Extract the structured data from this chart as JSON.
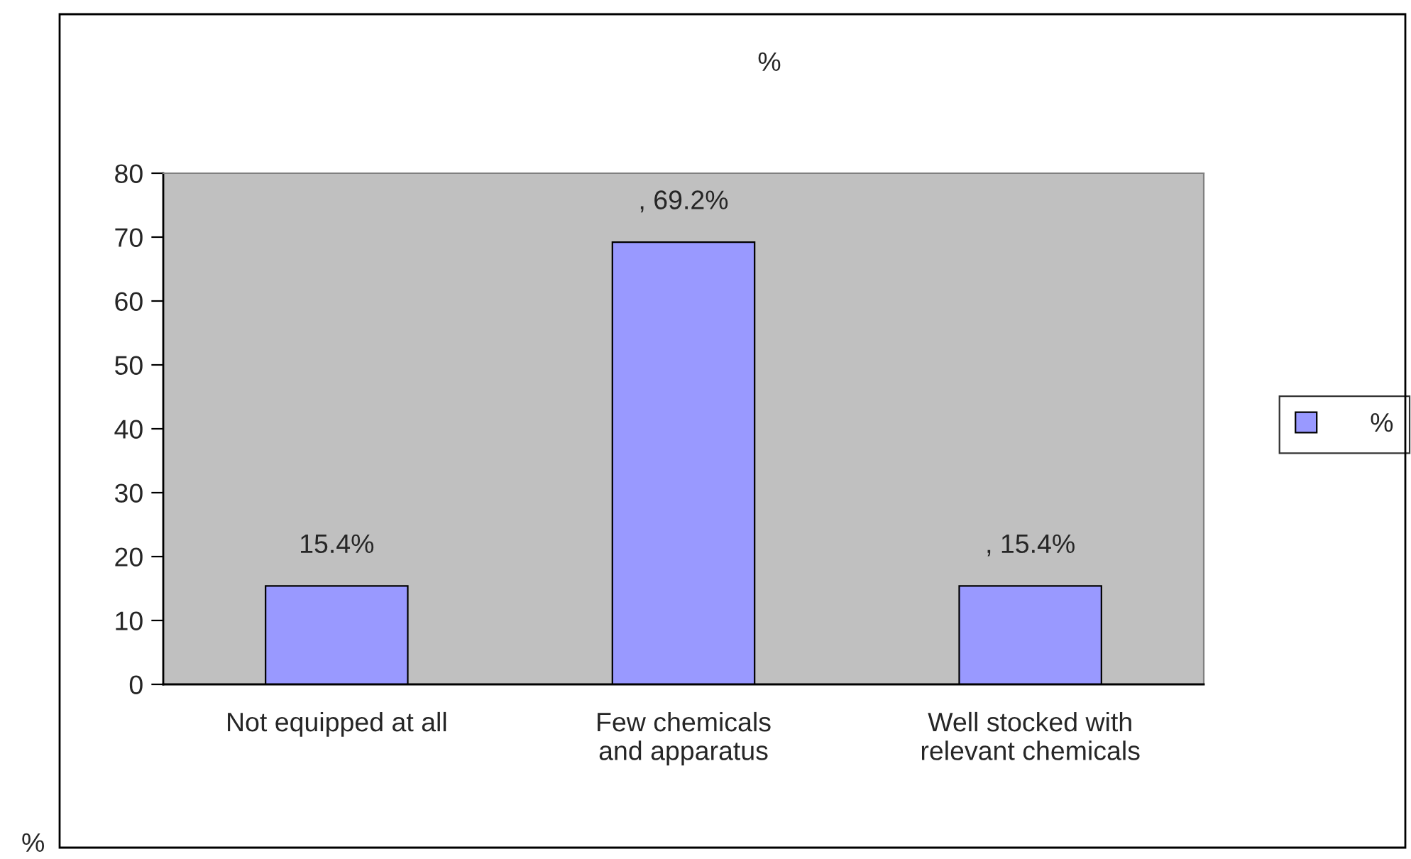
{
  "chart_data": {
    "type": "bar",
    "title": "%",
    "categories": [
      "Not equipped at all",
      "Few chemicals\nand apparatus",
      "Well stocked with\nrelevant chemicals"
    ],
    "series": [
      {
        "name": "%",
        "color": "#9999ff",
        "values": [
          15.4,
          69.2,
          15.4
        ],
        "value_labels": [
          "15.4%",
          ", 69.2%",
          ", 15.4%"
        ]
      }
    ],
    "ylim": [
      0,
      80
    ],
    "yticks": [
      0,
      10,
      20,
      30,
      40,
      50,
      60,
      70,
      80
    ],
    "legend": "right",
    "annotations": [
      "%"
    ]
  }
}
